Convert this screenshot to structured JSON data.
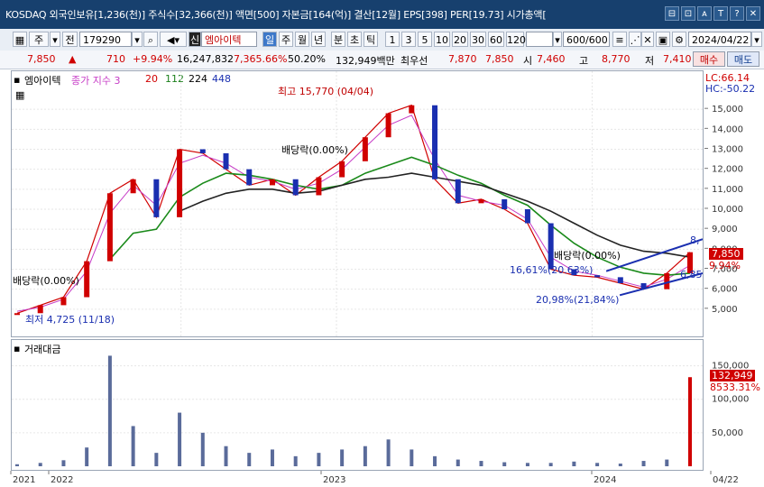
{
  "window": {
    "title": "KOSDAQ 외국인보유[1,236(천)] 주식수[32,366(천)] 액면[500] 자본금[164(억)] 결산[12월] EPS[398] PER[19.73] 시가총액[",
    "buttons": [
      "⊟",
      "⊡",
      "ᴀ",
      "T",
      "?",
      "✕"
    ]
  },
  "toolbar": {
    "type_label": "주",
    "prev_label": "전",
    "code": "179290",
    "badge": "신",
    "stock_name": "엠아이텍",
    "periods": [
      "일",
      "주",
      "월",
      "년",
      "분",
      "초",
      "틱"
    ],
    "intervals": [
      "1",
      "3",
      "5",
      "10",
      "20",
      "30",
      "60",
      "120"
    ],
    "count": "600/600",
    "date": "2024/04/22"
  },
  "quote": {
    "price": "7,850",
    "arrow": "▲",
    "change": "710",
    "change_pct": "+9.94%",
    "volume": "16,247,832",
    "volume_ratio": "7,365.66%",
    "rate": "50.20%",
    "amount": "132,949백만",
    "best_label": "최우선",
    "best1": "7,870",
    "best2": "7,850",
    "open_label": "시",
    "open": "7,460",
    "high_label": "고",
    "high": "8,770",
    "low_label": "저",
    "low": "7,410",
    "buy_label": "매수",
    "sell_label": "매도"
  },
  "price_panel": {
    "stock_label": "엠아이텍",
    "ma_label": "종가 지수 3",
    "ma_values": [
      "20",
      "112",
      "224",
      "448"
    ],
    "lc": "LC:66.14",
    "hc": "HC:-50.22",
    "current_price": "7,850",
    "current_pct": "9.94%",
    "annotations": {
      "high": "최고 15,770 (04/04)",
      "low": "최저 4,725 (11/18)",
      "div1": "배당락(0.00%)",
      "div2": "배당락(0.00%)",
      "div3": "배당락(0.00%)",
      "lbl_1661": "16,61%(20.63%)",
      "lbl_2098": "20,98%(21,84%)",
      "lbl_685": "6,85",
      "lbl_8": "8,"
    }
  },
  "volume_panel": {
    "label": "거래대금",
    "current": "132,949",
    "current_pct": "8533.31%"
  },
  "chart_data": [
    {
      "type": "line",
      "name": "price",
      "x": [
        "2021-11",
        "2021-12",
        "2022-01",
        "2022-02",
        "2022-03",
        "2022-04",
        "2022-05",
        "2022-06",
        "2022-07",
        "2022-08",
        "2022-09",
        "2022-10",
        "2022-11",
        "2022-12",
        "2023-01",
        "2023-02",
        "2023-03",
        "2023-04",
        "2023-05",
        "2023-06",
        "2023-07",
        "2023-08",
        "2023-09",
        "2023-10",
        "2023-11",
        "2023-12",
        "2024-01",
        "2024-02",
        "2024-03",
        "2024-04"
      ],
      "series": [
        {
          "name": "종가",
          "values": [
            4800,
            5200,
            5600,
            7400,
            10800,
            11500,
            9600,
            13000,
            12800,
            12000,
            11200,
            11500,
            10700,
            11600,
            12400,
            13600,
            14800,
            15200,
            11500,
            10300,
            10500,
            10000,
            9300,
            7000,
            6700,
            6600,
            6300,
            6000,
            6800,
            7850
          ]
        },
        {
          "name": "20",
          "values": [
            4900,
            5100,
            5500,
            6900,
            9800,
            11200,
            10200,
            12300,
            12700,
            12300,
            11600,
            11400,
            11000,
            11300,
            12000,
            13100,
            14200,
            14700,
            12500,
            10700,
            10400,
            10200,
            9500,
            7600,
            6900,
            6700,
            6400,
            6100,
            6500,
            7200
          ]
        },
        {
          "name": "112",
          "values": [
            null,
            null,
            null,
            null,
            7500,
            8800,
            9000,
            10600,
            11300,
            11800,
            11700,
            11500,
            11200,
            11000,
            11200,
            11800,
            12200,
            12600,
            12200,
            11700,
            11300,
            10700,
            10200,
            9200,
            8300,
            7600,
            7100,
            6800,
            6700,
            6800
          ]
        },
        {
          "name": "224",
          "values": [
            null,
            null,
            null,
            null,
            null,
            null,
            null,
            9900,
            10400,
            10800,
            11000,
            11000,
            10800,
            10900,
            11200,
            11500,
            11600,
            11800,
            11600,
            11400,
            11200,
            10800,
            10400,
            9900,
            9300,
            8700,
            8200,
            7900,
            7800,
            7600
          ]
        }
      ],
      "ylim": [
        4000,
        16000
      ],
      "y_ticks": [
        5000,
        6000,
        7000,
        8000,
        9000,
        10000,
        11000,
        12000,
        13000,
        14000,
        15000
      ],
      "x_tick_labels": [
        "2021",
        "2022",
        "2023",
        "2024",
        "04/22"
      ]
    },
    {
      "type": "bar",
      "name": "거래대금",
      "categories": [
        "2021-11",
        "2021-12",
        "2022-01",
        "2022-02",
        "2022-03",
        "2022-04",
        "2022-05",
        "2022-06",
        "2022-07",
        "2022-08",
        "2022-09",
        "2022-10",
        "2022-11",
        "2022-12",
        "2023-01",
        "2023-02",
        "2023-03",
        "2023-04",
        "2023-05",
        "2023-06",
        "2023-07",
        "2023-08",
        "2023-09",
        "2023-10",
        "2023-11",
        "2023-12",
        "2024-01",
        "2024-02",
        "2024-03",
        "2024-04"
      ],
      "values": [
        3000,
        5000,
        9000,
        28000,
        165000,
        60000,
        20000,
        80000,
        50000,
        30000,
        20000,
        25000,
        15000,
        20000,
        25000,
        30000,
        40000,
        25000,
        15000,
        10000,
        8000,
        6000,
        5000,
        5000,
        7000,
        5000,
        4000,
        8000,
        10000,
        132949
      ],
      "ylim": [
        0,
        175000
      ],
      "y_ticks": [
        50000,
        100000,
        150000
      ],
      "y_tick_labels": [
        "50,000",
        "100,000",
        "150,000"
      ]
    }
  ]
}
